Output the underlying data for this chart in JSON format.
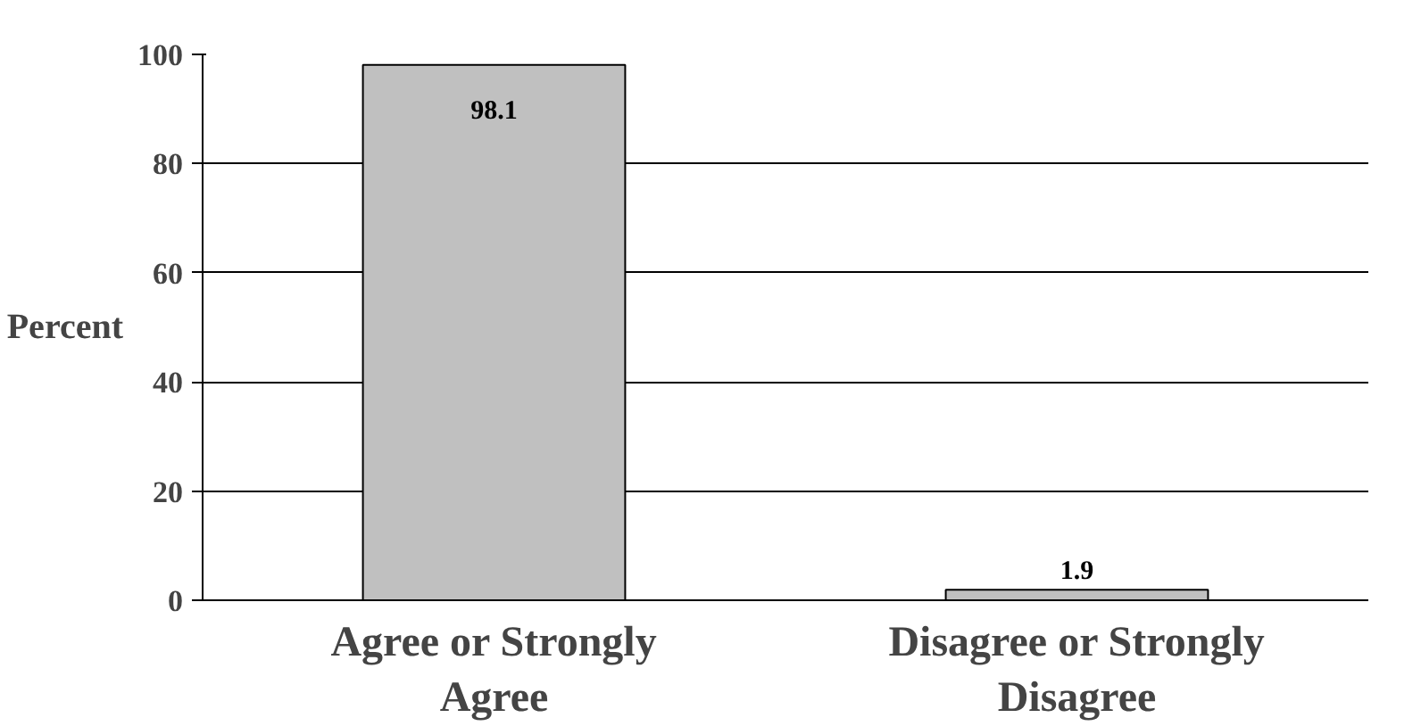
{
  "chart_data": {
    "type": "bar",
    "ylabel": "Percent",
    "categories": [
      "Agree or Strongly Agree",
      "Disagree or Strongly Disagree"
    ],
    "values": [
      98.1,
      1.9
    ],
    "color": "#c0c0c0",
    "ylim": [
      0,
      100
    ],
    "yticks": [
      0,
      20,
      40,
      60,
      80,
      100
    ],
    "grid": "y",
    "data_labels": true
  }
}
